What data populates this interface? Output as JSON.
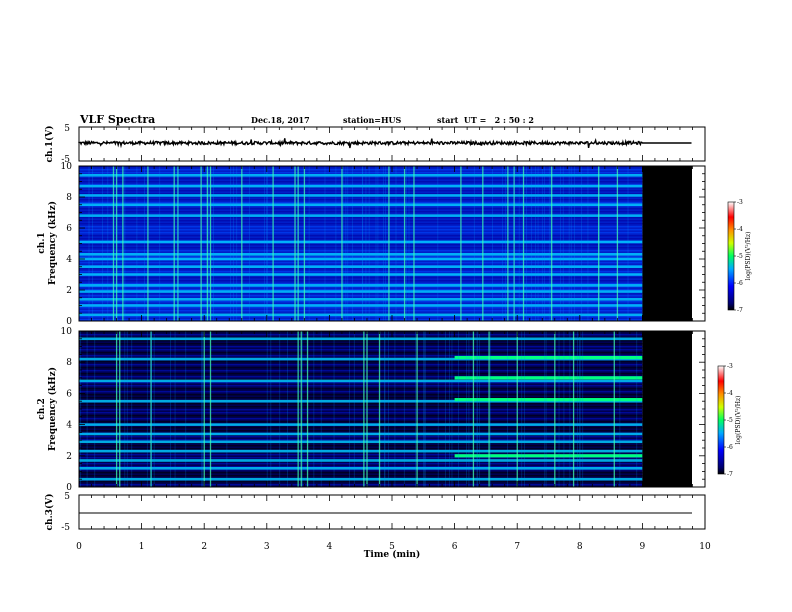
{
  "header": {
    "title": "VLF Spectra",
    "date": "Dec.18, 2017",
    "station": "station=HUS",
    "start": "start  UT =   2 : 50 : 2"
  },
  "chart_data": [
    {
      "type": "line",
      "name": "ch1-waveform",
      "ylabel": "ch.1(V)",
      "ylim": [
        -5,
        5
      ],
      "yticks": [
        "5",
        "-5"
      ],
      "xlim": [
        0,
        10
      ],
      "data_end_min": 9.0
    },
    {
      "type": "heatmap",
      "name": "ch1-spectrogram",
      "ylabel_line1": "ch.1",
      "ylabel_line2": "Frequency (kHz)",
      "ylim": [
        0,
        10
      ],
      "yticks": [
        "0",
        "2",
        "4",
        "6",
        "8",
        "10"
      ],
      "xlim": [
        0,
        10
      ],
      "data_end_min": 9.0,
      "tone_bands_khz": [
        0.4,
        1.0,
        1.4,
        1.9,
        2.3,
        3.0,
        3.5,
        4.0,
        4.3,
        5.1,
        6.8,
        7.5,
        8.1,
        8.7,
        9.4
      ],
      "impulse_times_min": [
        0.55,
        0.6,
        0.7,
        1.1,
        1.52,
        1.58,
        1.95,
        2.05,
        2.1,
        2.6,
        3.1,
        3.45,
        3.5,
        3.6,
        4.2,
        4.95,
        5.2,
        5.35,
        6.1,
        6.45,
        6.85,
        6.95,
        7.1,
        7.55,
        8.3,
        8.6
      ],
      "colorbar": {
        "label": "log(PSD)(V²/Hz)",
        "ticks": [
          "-3",
          "-4",
          "-5",
          "-6",
          "-7"
        ]
      }
    },
    {
      "type": "heatmap",
      "name": "ch2-spectrogram",
      "ylabel_line1": "ch.2",
      "ylabel_line2": "Frequency (kHz)",
      "ylim": [
        0,
        10
      ],
      "yticks": [
        "0",
        "2",
        "4",
        "6",
        "8",
        "10"
      ],
      "xlim": [
        0,
        10
      ],
      "data_end_min": 9.0,
      "tone_bands_khz": [
        0.5,
        1.2,
        1.7,
        2.3,
        2.9,
        3.4,
        4.0,
        5.5,
        6.8,
        8.2,
        9.5
      ],
      "late_tone_bands_khz": [
        2.0,
        5.6,
        7.0,
        8.3
      ],
      "late_tone_start_min": 6.0,
      "impulse_times_min": [
        0.6,
        0.65,
        1.15,
        2.0,
        2.1,
        3.5,
        3.55,
        3.65,
        4.55,
        4.6,
        4.8,
        5.4,
        6.3,
        6.55,
        7.0,
        7.6,
        7.9,
        8.55
      ],
      "colorbar": {
        "label": "log(PSD)(V²/Hz)",
        "ticks": [
          "-3",
          "-4",
          "-5",
          "-6",
          "-7"
        ]
      }
    },
    {
      "type": "line",
      "name": "ch3-waveform",
      "ylabel": "ch.3(V)",
      "ylim": [
        -5,
        5
      ],
      "yticks": [
        "5",
        "-5"
      ],
      "xlim": [
        0,
        10
      ],
      "xlabel": "Time (min)",
      "xticks": [
        "0",
        "1",
        "2",
        "3",
        "4",
        "5",
        "6",
        "7",
        "8",
        "9",
        "10"
      ]
    }
  ],
  "colors": {
    "background": "#ffffff",
    "axis": "#000000",
    "no_data": "#000000",
    "colormap": [
      "#000000",
      "#00007a",
      "#0000ff",
      "#0080ff",
      "#00ffff",
      "#00ff00",
      "#ffff00",
      "#ff8000",
      "#ff0000",
      "#ffffff"
    ]
  }
}
